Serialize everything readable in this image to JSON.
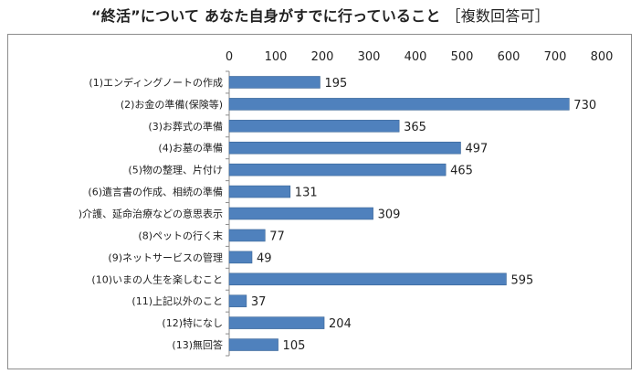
{
  "chart_data": {
    "type": "bar",
    "orientation": "horizontal",
    "title": "“終活”について あなた自身がすでに行っていること",
    "title_qualifier": "［複数回答可］",
    "categories": [
      "(1)エンディングノートの作成",
      "(2)お金の準備(保険等)",
      "(3)お葬式の準備",
      "(4)お墓の準備",
      "(5)物の整理、片付け",
      "(6)遺言書の作成、相続の準備",
      ")介護、延命治療などの意思表示",
      "(8)ペットの行く末",
      "(9)ネットサービスの管理",
      "(10)いまの人生を楽しむこと",
      "(11)上記以外のこと",
      "(12)特になし",
      "(13)無回答"
    ],
    "values": [
      195,
      730,
      365,
      497,
      465,
      131,
      309,
      77,
      49,
      595,
      37,
      204,
      105
    ],
    "xlim": [
      0,
      800
    ],
    "xticks": [
      0,
      100,
      200,
      300,
      400,
      500,
      600,
      700,
      800
    ],
    "xaxis_position": "top",
    "grid": false,
    "legend": "none",
    "bar_color": "#4f81bd",
    "bar_edge_color": "#3a6596"
  }
}
